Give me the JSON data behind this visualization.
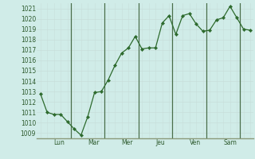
{
  "y_values": [
    1012.8,
    1011.0,
    1010.8,
    1010.8,
    1010.1,
    1009.4,
    1008.8,
    1010.6,
    1012.9,
    1013.0,
    1014.1,
    1015.5,
    1016.7,
    1017.2,
    1018.3,
    1017.1,
    1017.2,
    1017.2,
    1019.6,
    1020.3,
    1018.5,
    1020.3,
    1020.5,
    1019.5,
    1018.8,
    1018.9,
    1019.9,
    1020.1,
    1021.2,
    1020.1,
    1019.0,
    1018.9
  ],
  "n_points": 32,
  "xlim": [
    -0.5,
    31.5
  ],
  "day_boundaries": [
    4.5,
    9.5,
    14.5,
    19.5,
    24.5,
    29.5
  ],
  "x_tick_positions": [
    2.0,
    7.0,
    12.0,
    17.0,
    22.0,
    27.0
  ],
  "x_tick_labels": [
    "Lun",
    "Mar",
    "Mer",
    "Jeu",
    "Ven",
    "Sam"
  ],
  "ylim": [
    1008.5,
    1021.5
  ],
  "yticks": [
    1009,
    1010,
    1011,
    1012,
    1013,
    1014,
    1015,
    1016,
    1017,
    1018,
    1019,
    1020,
    1021
  ],
  "line_color": "#2d6a2d",
  "marker_color": "#2d6a2d",
  "bg_color": "#d0ece8",
  "grid_color_minor": "#c8deda",
  "grid_color_major": "#b8ceca",
  "vline_color": "#4a6e4a",
  "tick_label_color": "#2d5a2d",
  "spine_color": "#8a9a7a"
}
